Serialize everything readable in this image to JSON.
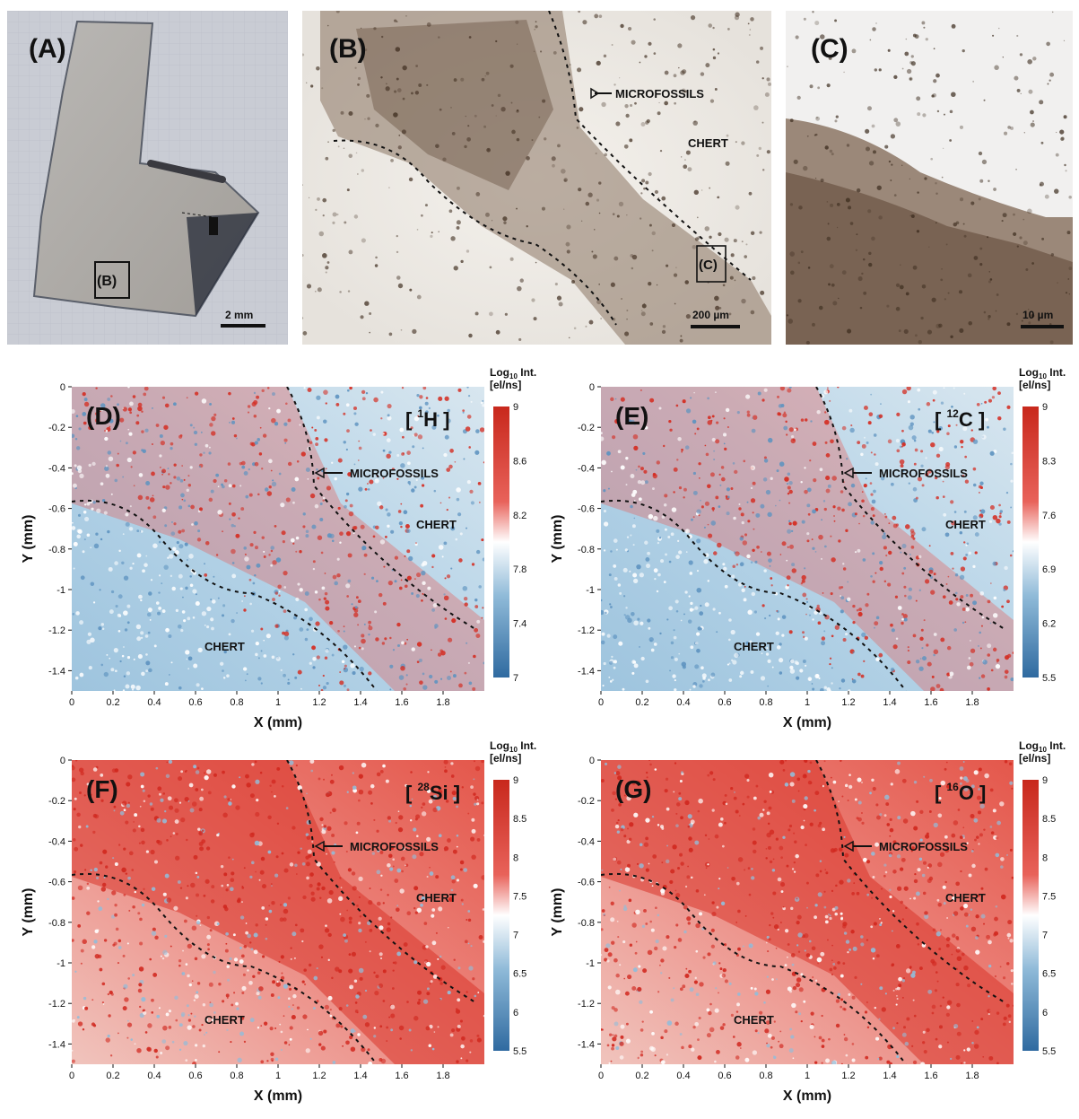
{
  "photos": {
    "a": {
      "label": "(A)",
      "inset_label": "(B)",
      "scale": "2 mm"
    },
    "b": {
      "label": "(B)",
      "inset_label": "(C)",
      "annotation": "MICROFOSSILS",
      "region": "CHERT",
      "scale": "200 µm"
    },
    "c": {
      "label": "(C)",
      "scale": "10 µm"
    }
  },
  "maps": [
    {
      "label": "(D)",
      "iso_main": "H",
      "iso_sup": "1",
      "cb_title": "Log",
      "cb_sub": "10",
      "cb_title2": " Int.",
      "cb_unit": "[el/ns]",
      "cb_ticks": [
        "9",
        "8.6",
        "8.2",
        "7.8",
        "7.4",
        "7"
      ],
      "annotation": "MICROFOSSILS",
      "chert1": "CHERT",
      "chert2": "CHERT",
      "xlabel": "X (mm)",
      "ylabel": "Y (mm)",
      "tone": "cool"
    },
    {
      "label": "(E)",
      "iso_main": "C",
      "iso_sup": "12",
      "cb_title": "Log",
      "cb_sub": "10",
      "cb_title2": " Int.",
      "cb_unit": "[el/ns]",
      "cb_ticks": [
        "9",
        "8.3",
        "7.6",
        "6.9",
        "6.2",
        "5.5"
      ],
      "annotation": "MICROFOSSILS",
      "chert1": "CHERT",
      "chert2": "CHERT",
      "xlabel": "X (mm)",
      "ylabel": "Y (mm)",
      "tone": "cool"
    },
    {
      "label": "(F)",
      "iso_main": "Si",
      "iso_sup": "28",
      "cb_title": "Log",
      "cb_sub": "10",
      "cb_title2": " Int.",
      "cb_unit": "[el/ns]",
      "cb_ticks": [
        "9",
        "8.5",
        "8",
        "7.5",
        "7",
        "6.5",
        "6",
        "5.5"
      ],
      "annotation": "MICROFOSSILS",
      "chert1": "CHERT",
      "chert2": "CHERT",
      "xlabel": "X (mm)",
      "ylabel": "Y (mm)",
      "tone": "warm"
    },
    {
      "label": "(G)",
      "iso_main": "O",
      "iso_sup": "16",
      "cb_title": "Log",
      "cb_sub": "10",
      "cb_title2": " Int.",
      "cb_unit": "[el/ns]",
      "cb_ticks": [
        "9",
        "8.5",
        "8",
        "7.5",
        "7",
        "6.5",
        "6",
        "5.5"
      ],
      "annotation": "MICROFOSSILS",
      "chert1": "CHERT",
      "chert2": "CHERT",
      "xlabel": "X (mm)",
      "ylabel": "Y (mm)",
      "tone": "warm"
    }
  ],
  "axes": {
    "x_ticks": [
      "0",
      "0.2",
      "0.4",
      "0.6",
      "0.8",
      "1",
      "1.2",
      "1.4",
      "1.6",
      "1.8"
    ],
    "y_ticks": [
      "0",
      "-0.2",
      "-0.4",
      "-0.6",
      "-0.8",
      "-1",
      "-1.2",
      "-1.4"
    ]
  }
}
